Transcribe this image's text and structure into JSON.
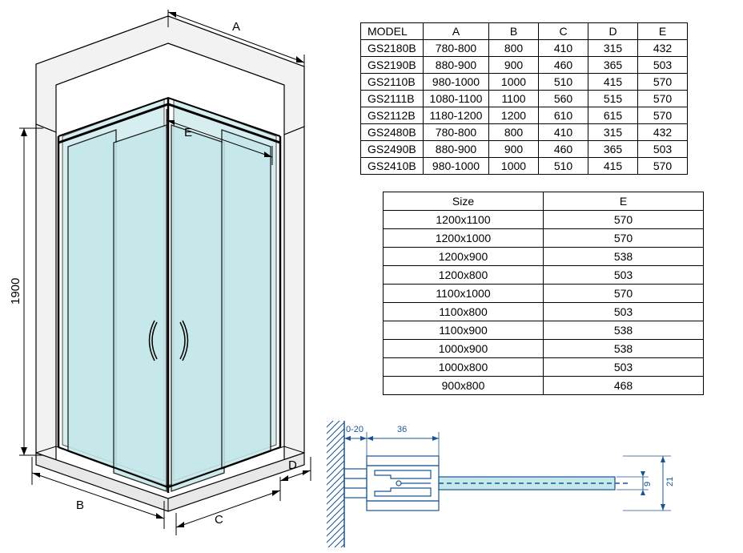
{
  "dimensions": {
    "height": "1900",
    "labels": {
      "A": "A",
      "B": "B",
      "C": "C",
      "D": "D",
      "E": "E"
    }
  },
  "model_table": {
    "headers": [
      "MODEL",
      "A",
      "B",
      "C",
      "D",
      "E"
    ],
    "rows": [
      [
        "GS2180B",
        "780-800",
        "800",
        "410",
        "315",
        "432"
      ],
      [
        "GS2190B",
        "880-900",
        "900",
        "460",
        "365",
        "503"
      ],
      [
        "GS2110B",
        "980-1000",
        "1000",
        "510",
        "415",
        "570"
      ],
      [
        "GS2111B",
        "1080-1100",
        "1100",
        "560",
        "515",
        "570"
      ],
      [
        "GS2112B",
        "1180-1200",
        "1200",
        "610",
        "615",
        "570"
      ],
      [
        "GS2480B",
        "780-800",
        "800",
        "410",
        "315",
        "432"
      ],
      [
        "GS2490B",
        "880-900",
        "900",
        "460",
        "365",
        "503"
      ],
      [
        "GS2410B",
        "980-1000",
        "1000",
        "510",
        "415",
        "570"
      ]
    ]
  },
  "size_table": {
    "headers": [
      "Size",
      "E"
    ],
    "rows": [
      [
        "1200x1100",
        "570"
      ],
      [
        "1200x1000",
        "570"
      ],
      [
        "1200x900",
        "538"
      ],
      [
        "1200x800",
        "503"
      ],
      [
        "1100x1000",
        "570"
      ],
      [
        "1100x800",
        "503"
      ],
      [
        "1100x900",
        "538"
      ],
      [
        "1000x900",
        "538"
      ],
      [
        "1000x800",
        "503"
      ],
      [
        "900x800",
        "468"
      ]
    ]
  },
  "detail": {
    "gap": "0-20",
    "width1": "36",
    "h1": "21",
    "h2": "9"
  },
  "colors": {
    "glass": "#c5e8ea",
    "line": "#000000",
    "blueprint": "#1a5490",
    "frame_light": "#e8e8e8",
    "frame_dark": "#888888"
  }
}
